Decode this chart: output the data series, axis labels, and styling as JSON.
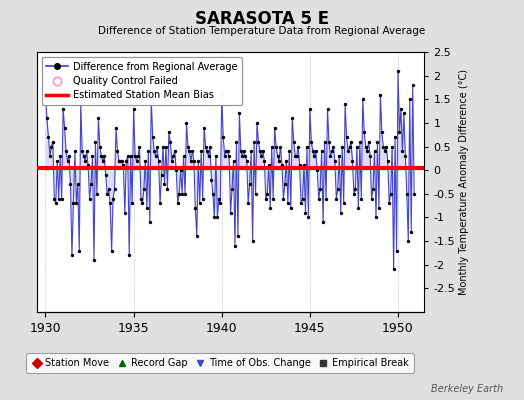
{
  "title": "SARASOTA 5 E",
  "subtitle": "Difference of Station Temperature Data from Regional Average",
  "ylabel_right": "Monthly Temperature Anomaly Difference (°C)",
  "xlim": [
    1929.5,
    1951.5
  ],
  "ylim": [
    -3.0,
    2.5
  ],
  "yticks": [
    -2.5,
    -2,
    -1.5,
    -1,
    -0.5,
    0,
    0.5,
    1,
    1.5,
    2,
    2.5
  ],
  "xticks": [
    1930,
    1935,
    1940,
    1945,
    1950
  ],
  "mean_bias": 0.05,
  "background_color": "#e0e0e0",
  "plot_bg_color": "#ffffff",
  "line_color": "#4444cc",
  "line_fill_color": "#aaaaee",
  "dot_color": "#000000",
  "bias_color": "#ff0000",
  "watermark": "Berkeley Earth",
  "data_years": [
    1930.0,
    1930.083,
    1930.167,
    1930.25,
    1930.333,
    1930.417,
    1930.5,
    1930.583,
    1930.667,
    1930.75,
    1930.833,
    1930.917,
    1931.0,
    1931.083,
    1931.167,
    1931.25,
    1931.333,
    1931.417,
    1931.5,
    1931.583,
    1931.667,
    1931.75,
    1931.833,
    1931.917,
    1932.0,
    1932.083,
    1932.167,
    1932.25,
    1932.333,
    1932.417,
    1932.5,
    1932.583,
    1932.667,
    1932.75,
    1932.833,
    1932.917,
    1933.0,
    1933.083,
    1933.167,
    1933.25,
    1933.333,
    1933.417,
    1933.5,
    1933.583,
    1933.667,
    1933.75,
    1933.833,
    1933.917,
    1934.0,
    1934.083,
    1934.167,
    1934.25,
    1934.333,
    1934.417,
    1934.5,
    1934.583,
    1934.667,
    1934.75,
    1934.833,
    1934.917,
    1935.0,
    1935.083,
    1935.167,
    1935.25,
    1935.333,
    1935.417,
    1935.5,
    1935.583,
    1935.667,
    1935.75,
    1935.833,
    1935.917,
    1936.0,
    1936.083,
    1936.167,
    1936.25,
    1936.333,
    1936.417,
    1936.5,
    1936.583,
    1936.667,
    1936.75,
    1936.833,
    1936.917,
    1937.0,
    1937.083,
    1937.167,
    1937.25,
    1937.333,
    1937.417,
    1937.5,
    1937.583,
    1937.667,
    1937.75,
    1937.833,
    1937.917,
    1938.0,
    1938.083,
    1938.167,
    1938.25,
    1938.333,
    1938.417,
    1938.5,
    1938.583,
    1938.667,
    1938.75,
    1938.833,
    1938.917,
    1939.0,
    1939.083,
    1939.167,
    1939.25,
    1939.333,
    1939.417,
    1939.5,
    1939.583,
    1939.667,
    1939.75,
    1939.833,
    1939.917,
    1940.0,
    1940.083,
    1940.167,
    1940.25,
    1940.333,
    1940.417,
    1940.5,
    1940.583,
    1940.667,
    1940.75,
    1940.833,
    1940.917,
    1941.0,
    1941.083,
    1941.167,
    1941.25,
    1941.333,
    1941.417,
    1941.5,
    1941.583,
    1941.667,
    1941.75,
    1941.833,
    1941.917,
    1942.0,
    1942.083,
    1942.167,
    1942.25,
    1942.333,
    1942.417,
    1942.5,
    1942.583,
    1942.667,
    1942.75,
    1942.833,
    1942.917,
    1943.0,
    1943.083,
    1943.167,
    1943.25,
    1943.333,
    1943.417,
    1943.5,
    1943.583,
    1943.667,
    1943.75,
    1943.833,
    1943.917,
    1944.0,
    1944.083,
    1944.167,
    1944.25,
    1944.333,
    1944.417,
    1944.5,
    1944.583,
    1944.667,
    1944.75,
    1944.833,
    1944.917,
    1945.0,
    1945.083,
    1945.167,
    1945.25,
    1945.333,
    1945.417,
    1945.5,
    1945.583,
    1945.667,
    1945.75,
    1945.833,
    1945.917,
    1946.0,
    1946.083,
    1946.167,
    1946.25,
    1946.333,
    1946.417,
    1946.5,
    1946.583,
    1946.667,
    1946.75,
    1946.833,
    1946.917,
    1947.0,
    1947.083,
    1947.167,
    1947.25,
    1947.333,
    1947.417,
    1947.5,
    1947.583,
    1947.667,
    1947.75,
    1947.833,
    1947.917,
    1948.0,
    1948.083,
    1948.167,
    1948.25,
    1948.333,
    1948.417,
    1948.5,
    1948.583,
    1948.667,
    1948.75,
    1948.833,
    1948.917,
    1949.0,
    1949.083,
    1949.167,
    1949.25,
    1949.333,
    1949.417,
    1949.5,
    1949.583,
    1949.667,
    1949.75,
    1949.833,
    1949.917,
    1950.0,
    1950.083,
    1950.167,
    1950.25,
    1950.333,
    1950.417,
    1950.5,
    1950.583,
    1950.667,
    1950.75,
    1950.833,
    1950.917
  ],
  "data_values": [
    1.6,
    1.1,
    0.7,
    0.3,
    0.5,
    0.6,
    -0.6,
    -0.7,
    0.2,
    -0.6,
    0.3,
    -0.6,
    1.3,
    0.9,
    0.4,
    0.2,
    0.3,
    -0.3,
    -1.8,
    -0.7,
    0.4,
    -0.7,
    -0.3,
    -1.7,
    1.4,
    0.4,
    0.3,
    0.2,
    0.4,
    0.1,
    -0.6,
    -0.3,
    0.3,
    -1.9,
    0.6,
    -0.5,
    1.1,
    0.5,
    0.3,
    0.2,
    0.3,
    -0.1,
    -0.5,
    -0.4,
    -0.7,
    -1.7,
    -0.6,
    -0.4,
    0.9,
    0.4,
    0.2,
    0.2,
    0.2,
    0.1,
    -0.9,
    0.2,
    0.3,
    -1.8,
    0.3,
    -0.7,
    1.3,
    0.3,
    0.2,
    0.3,
    0.5,
    -0.6,
    -0.7,
    -0.4,
    0.2,
    -0.8,
    0.4,
    -1.1,
    1.5,
    0.7,
    0.4,
    0.3,
    0.5,
    0.2,
    -0.7,
    -0.1,
    0.5,
    -0.3,
    0.5,
    -0.4,
    0.8,
    0.6,
    0.2,
    0.3,
    0.4,
    0.0,
    -0.7,
    -0.5,
    0.0,
    -0.5,
    0.3,
    -0.5,
    1.0,
    0.5,
    0.4,
    0.2,
    0.4,
    0.2,
    -0.8,
    -1.4,
    0.2,
    -0.7,
    0.4,
    -0.6,
    0.9,
    0.5,
    0.4,
    0.3,
    0.5,
    -0.2,
    -0.5,
    -1.0,
    0.3,
    -1.0,
    -0.6,
    -0.7,
    1.6,
    0.7,
    0.3,
    0.4,
    0.4,
    0.3,
    -0.9,
    -0.4,
    0.2,
    -1.6,
    0.6,
    -1.4,
    1.2,
    0.4,
    0.3,
    0.4,
    0.3,
    0.2,
    -0.7,
    -0.3,
    0.4,
    -1.5,
    0.6,
    -0.5,
    1.0,
    0.6,
    0.4,
    0.3,
    0.4,
    0.2,
    -0.6,
    -0.5,
    0.1,
    -0.8,
    0.5,
    -0.6,
    0.9,
    0.5,
    0.3,
    0.2,
    0.5,
    0.1,
    -0.6,
    -0.3,
    0.2,
    -0.7,
    0.4,
    -0.8,
    1.1,
    0.6,
    0.3,
    0.3,
    0.5,
    0.1,
    -0.7,
    -0.6,
    0.1,
    -0.9,
    0.5,
    -1.0,
    1.3,
    0.6,
    0.4,
    0.3,
    0.4,
    0.0,
    -0.6,
    -0.4,
    0.4,
    -1.1,
    0.6,
    -0.6,
    1.3,
    0.6,
    0.3,
    0.4,
    0.5,
    0.2,
    -0.6,
    -0.4,
    0.3,
    -0.9,
    0.5,
    -0.7,
    1.4,
    0.7,
    0.4,
    0.5,
    0.6,
    0.2,
    -0.5,
    -0.4,
    0.5,
    -0.8,
    0.6,
    -0.6,
    1.5,
    0.8,
    0.5,
    0.4,
    0.6,
    0.3,
    -0.6,
    -0.4,
    0.4,
    -1.0,
    0.6,
    -0.8,
    1.6,
    0.8,
    0.5,
    0.4,
    0.5,
    0.2,
    -0.7,
    -0.5,
    0.5,
    -2.1,
    0.7,
    -1.7,
    2.1,
    0.8,
    1.3,
    0.4,
    1.2,
    0.3,
    -0.5,
    -1.5,
    1.5,
    -1.3,
    1.8,
    -0.5
  ]
}
